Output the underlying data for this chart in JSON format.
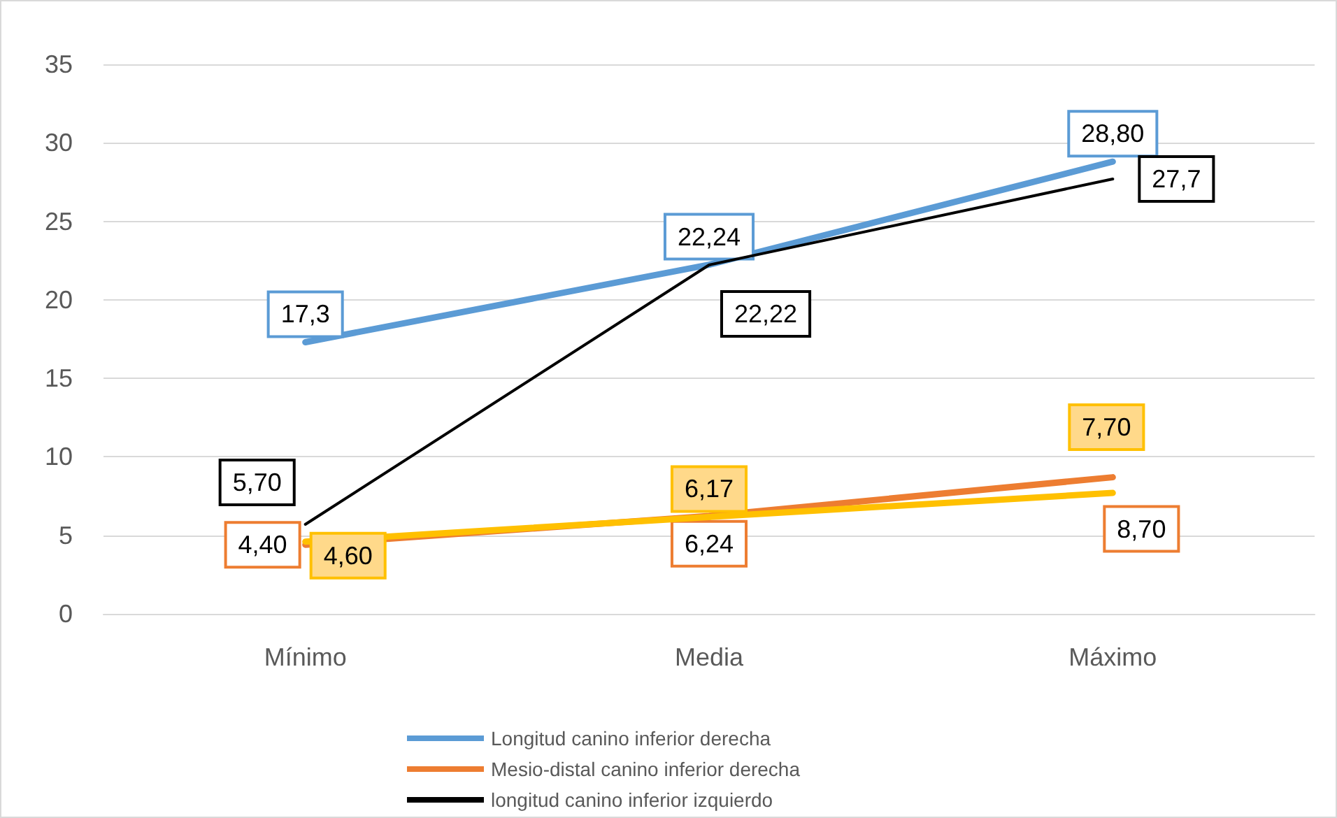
{
  "chart_data": {
    "type": "line",
    "categories": [
      "Mínimo",
      "Media",
      "Máximo"
    ],
    "ylim": [
      0,
      35
    ],
    "yticks": [
      0,
      5,
      10,
      15,
      20,
      25,
      30,
      35
    ],
    "grid": "y",
    "legend": "bottom",
    "marker": "none",
    "series": [
      {
        "name": "Longitud canino inferior derecha",
        "color": "#5b9bd5",
        "values": [
          17.3,
          22.24,
          28.8
        ],
        "value_labels": [
          "17,3",
          "22,24",
          "28,80"
        ]
      },
      {
        "name": "Mesio-distal canino inferior derecha",
        "color": "#ed7d31",
        "values": [
          4.4,
          6.24,
          8.7
        ],
        "value_labels": [
          "4,40",
          "6,24",
          "8,70"
        ]
      },
      {
        "name": "longitud canino inferior izquierdo",
        "color": "#000000",
        "values": [
          5.7,
          22.22,
          27.7
        ],
        "value_labels": [
          "5,70",
          "22,22",
          "27,7"
        ]
      },
      {
        "color": "#ffc000",
        "values": [
          4.6,
          6.17,
          7.7
        ],
        "value_labels": [
          "4,60",
          "6,17",
          "7,70"
        ]
      }
    ]
  }
}
